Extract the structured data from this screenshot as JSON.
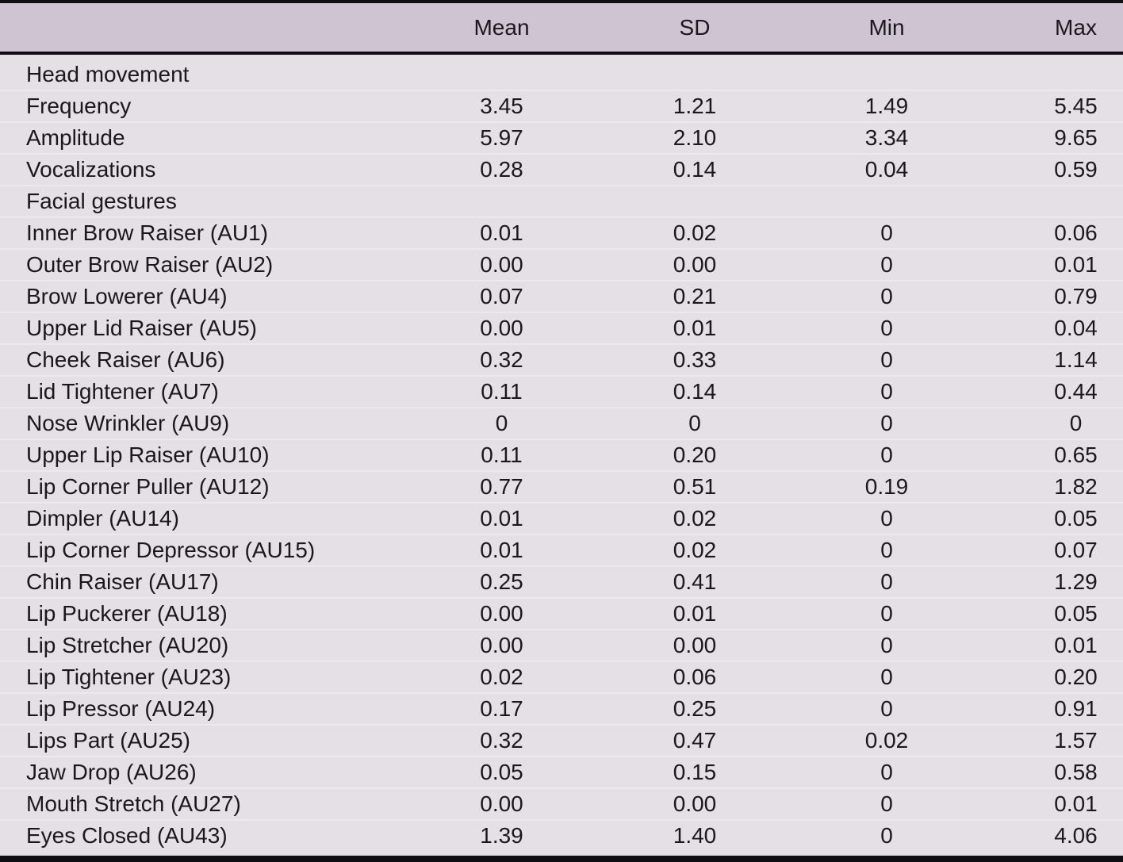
{
  "table": {
    "columns": [
      "",
      "Mean",
      "SD",
      "Min",
      "Max"
    ],
    "rows": [
      {
        "label": "Head movement",
        "section": true,
        "values": [
          "",
          "",
          "",
          ""
        ]
      },
      {
        "label": "Frequency",
        "section": false,
        "values": [
          "3.45",
          "1.21",
          "1.49",
          "5.45"
        ]
      },
      {
        "label": "Amplitude",
        "section": false,
        "values": [
          "5.97",
          "2.10",
          "3.34",
          "9.65"
        ]
      },
      {
        "label": "Vocalizations",
        "section": false,
        "values": [
          "0.28",
          "0.14",
          "0.04",
          "0.59"
        ]
      },
      {
        "label": "Facial gestures",
        "section": true,
        "values": [
          "",
          "",
          "",
          ""
        ]
      },
      {
        "label": "Inner Brow Raiser (AU1)",
        "section": false,
        "values": [
          "0.01",
          "0.02",
          "0",
          "0.06"
        ]
      },
      {
        "label": "Outer Brow Raiser (AU2)",
        "section": false,
        "values": [
          "0.00",
          "0.00",
          "0",
          "0.01"
        ]
      },
      {
        "label": "Brow Lowerer (AU4)",
        "section": false,
        "values": [
          "0.07",
          "0.21",
          "0",
          "0.79"
        ]
      },
      {
        "label": "Upper Lid Raiser (AU5)",
        "section": false,
        "values": [
          "0.00",
          "0.01",
          "0",
          "0.04"
        ]
      },
      {
        "label": "Cheek Raiser (AU6)",
        "section": false,
        "values": [
          "0.32",
          "0.33",
          "0",
          "1.14"
        ]
      },
      {
        "label": "Lid Tightener (AU7)",
        "section": false,
        "values": [
          "0.11",
          "0.14",
          "0",
          "0.44"
        ]
      },
      {
        "label": "Nose Wrinkler (AU9)",
        "section": false,
        "values": [
          "0",
          "0",
          "0",
          "0"
        ]
      },
      {
        "label": "Upper Lip Raiser (AU10)",
        "section": false,
        "values": [
          "0.11",
          "0.20",
          "0",
          "0.65"
        ]
      },
      {
        "label": "Lip Corner Puller (AU12)",
        "section": false,
        "values": [
          "0.77",
          "0.51",
          "0.19",
          "1.82"
        ]
      },
      {
        "label": "Dimpler (AU14)",
        "section": false,
        "values": [
          "0.01",
          "0.02",
          "0",
          "0.05"
        ]
      },
      {
        "label": "Lip Corner Depressor (AU15)",
        "section": false,
        "values": [
          "0.01",
          "0.02",
          "0",
          "0.07"
        ]
      },
      {
        "label": "Chin Raiser (AU17)",
        "section": false,
        "values": [
          "0.25",
          "0.41",
          "0",
          "1.29"
        ]
      },
      {
        "label": "Lip Puckerer (AU18)",
        "section": false,
        "values": [
          "0.00",
          "0.01",
          "0",
          "0.05"
        ]
      },
      {
        "label": "Lip Stretcher (AU20)",
        "section": false,
        "values": [
          "0.00",
          "0.00",
          "0",
          "0.01"
        ]
      },
      {
        "label": "Lip Tightener (AU23)",
        "section": false,
        "values": [
          "0.02",
          "0.06",
          "0",
          "0.20"
        ]
      },
      {
        "label": "Lip Pressor (AU24)",
        "section": false,
        "values": [
          "0.17",
          "0.25",
          "0",
          "0.91"
        ]
      },
      {
        "label": "Lips Part (AU25)",
        "section": false,
        "values": [
          "0.32",
          "0.47",
          "0.02",
          "1.57"
        ]
      },
      {
        "label": "Jaw Drop (AU26)",
        "section": false,
        "values": [
          "0.05",
          "0.15",
          "0",
          "0.58"
        ]
      },
      {
        "label": "Mouth Stretch (AU27)",
        "section": false,
        "values": [
          "0.00",
          "0.00",
          "0",
          "0.01"
        ]
      },
      {
        "label": "Eyes Closed (AU43)",
        "section": false,
        "values": [
          "1.39",
          "1.40",
          "0",
          "4.06"
        ]
      }
    ]
  },
  "colors": {
    "header_bg": "#cfc5d2",
    "body_bg": "#e5dfe6",
    "border": "#0f0e13",
    "text": "#1a181d"
  }
}
